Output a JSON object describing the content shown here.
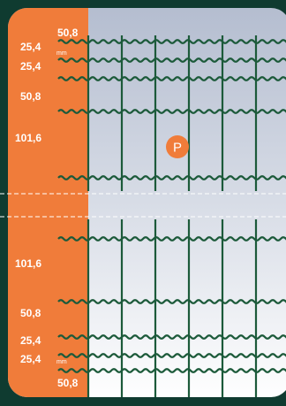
{
  "colors": {
    "background": "#0f3b30",
    "orange_panel": "#f07c3a",
    "wire": "#1c5a3a",
    "panel_top": "#b3bccf",
    "panel_bottom": "#ffffff",
    "badge": "#f07c3a"
  },
  "unit": "mm",
  "badge": {
    "letter": "P"
  },
  "top_labels": [
    "50,8",
    "25,4",
    "25,4",
    "50,8",
    "101,6"
  ],
  "bottom_labels": [
    "101,6",
    "50,8",
    "25,4",
    "25,4",
    "50,8"
  ],
  "spacing_top_mm": [
    50.8,
    25.4,
    25.4,
    50.8,
    101.6
  ],
  "spacing_bottom_mm": [
    101.6,
    50.8,
    25.4,
    25.4,
    50.8
  ],
  "break_indicator": "dashed-lines"
}
